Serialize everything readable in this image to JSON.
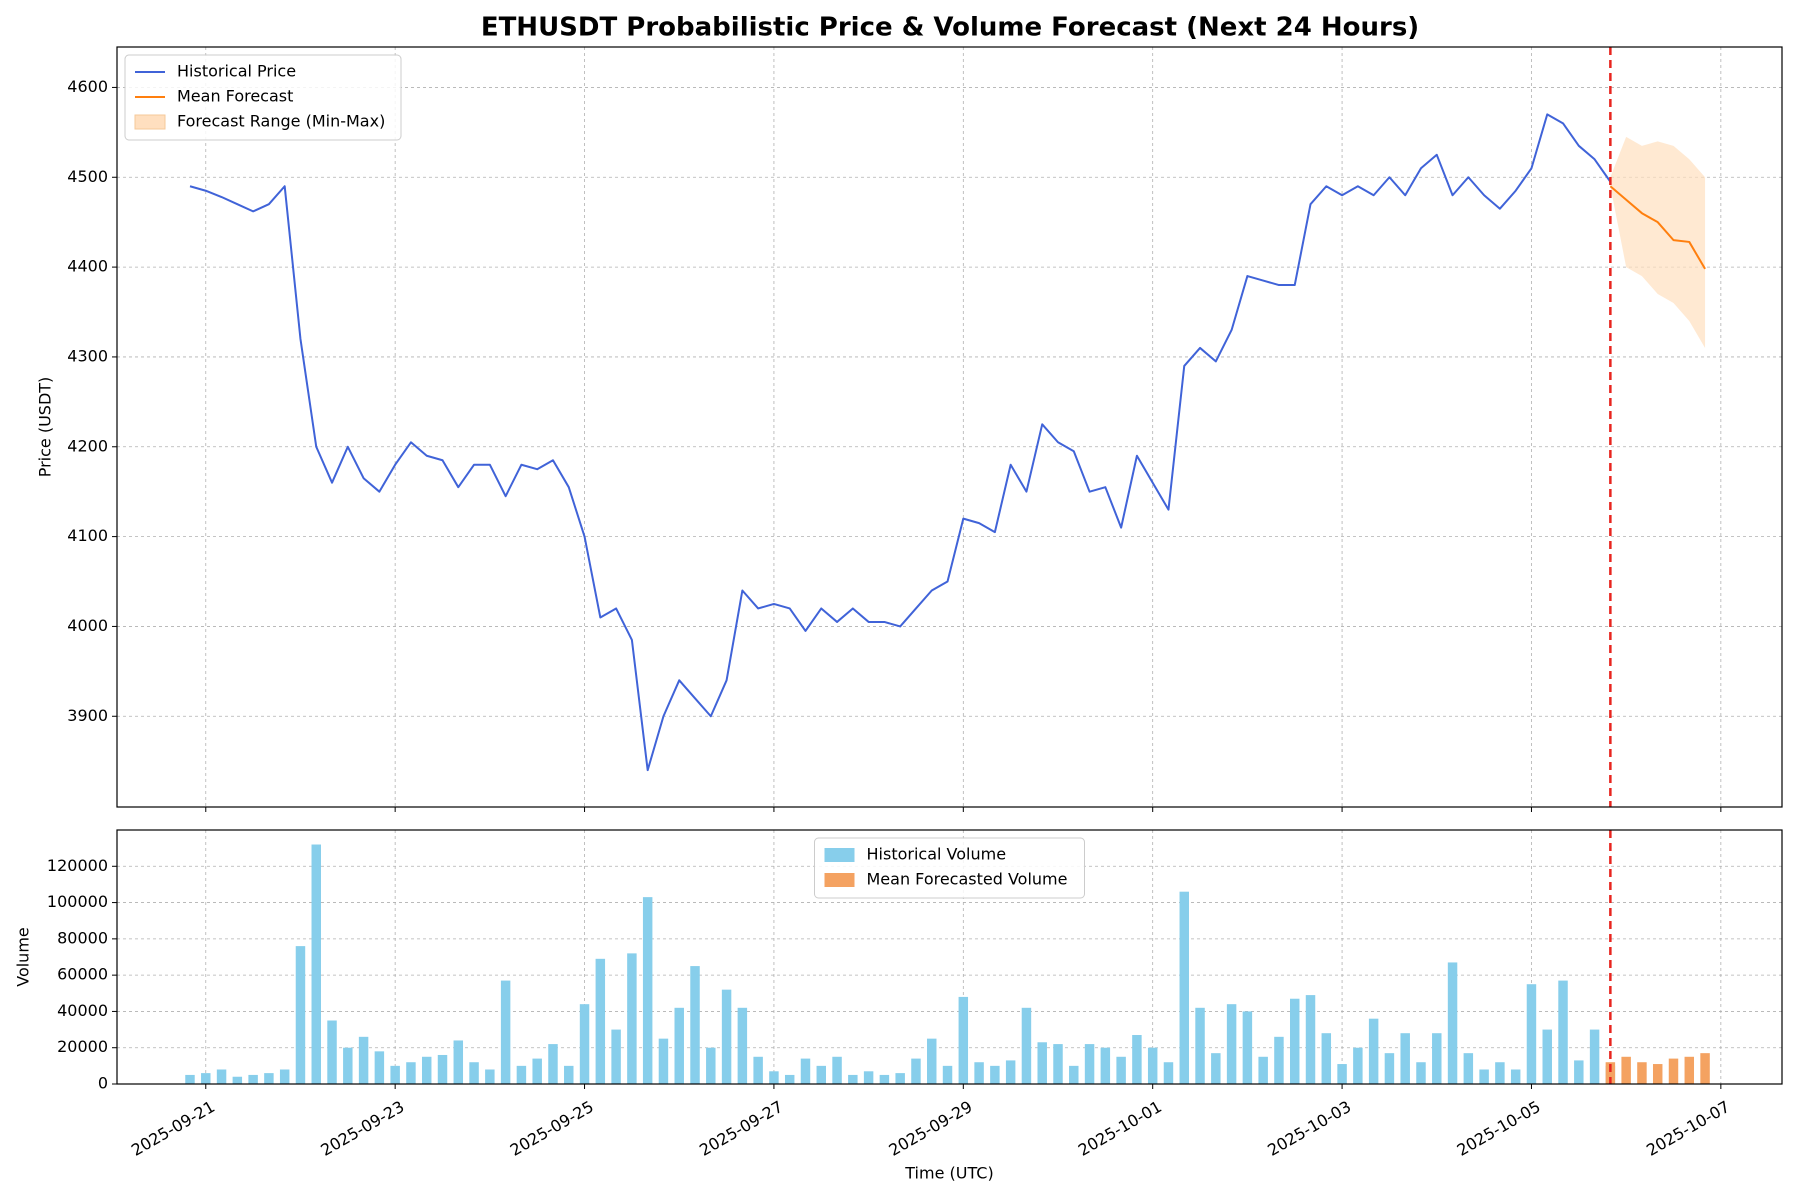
{
  "chart_data": [
    {
      "type": "line",
      "title": "ETHUSDT Probabilistic Price & Volume Forecast (Next 24 Hours)",
      "ylabel": "Price (USDT)",
      "xlim": [
        "2025-09-20 01:30",
        "2025-10-07 15:30"
      ],
      "xticks": [
        "2025-09-21",
        "2025-09-23",
        "2025-09-25",
        "2025-09-27",
        "2025-09-29",
        "2025-10-01",
        "2025-10-03",
        "2025-10-05",
        "2025-10-07"
      ],
      "ylim": [
        3799,
        4645
      ],
      "yticks": [
        3900,
        4000,
        4100,
        4200,
        4300,
        4400,
        4500,
        4600
      ],
      "grid": true,
      "legend": "upper left",
      "forecast_start": "2025-10-05 20:00",
      "forecast_start_color": "#e8251f",
      "series": [
        {
          "name": "Historical Price",
          "color": "#4063d8",
          "x": [
            "2025-09-20 20:00",
            "2025-09-21 00:00",
            "2025-09-21 04:00",
            "2025-09-21 08:00",
            "2025-09-21 12:00",
            "2025-09-21 16:00",
            "2025-09-21 20:00",
            "2025-09-22 00:00",
            "2025-09-22 04:00",
            "2025-09-22 08:00",
            "2025-09-22 12:00",
            "2025-09-22 16:00",
            "2025-09-22 20:00",
            "2025-09-23 00:00",
            "2025-09-23 04:00",
            "2025-09-23 08:00",
            "2025-09-23 12:00",
            "2025-09-23 16:00",
            "2025-09-23 20:00",
            "2025-09-24 00:00",
            "2025-09-24 04:00",
            "2025-09-24 08:00",
            "2025-09-24 12:00",
            "2025-09-24 16:00",
            "2025-09-24 20:00",
            "2025-09-25 00:00",
            "2025-09-25 04:00",
            "2025-09-25 08:00",
            "2025-09-25 12:00",
            "2025-09-25 16:00",
            "2025-09-25 20:00",
            "2025-09-26 00:00",
            "2025-09-26 04:00",
            "2025-09-26 08:00",
            "2025-09-26 12:00",
            "2025-09-26 16:00",
            "2025-09-26 20:00",
            "2025-09-27 00:00",
            "2025-09-27 04:00",
            "2025-09-27 08:00",
            "2025-09-27 12:00",
            "2025-09-27 16:00",
            "2025-09-27 20:00",
            "2025-09-28 00:00",
            "2025-09-28 04:00",
            "2025-09-28 08:00",
            "2025-09-28 12:00",
            "2025-09-28 16:00",
            "2025-09-28 20:00",
            "2025-09-29 00:00",
            "2025-09-29 04:00",
            "2025-09-29 08:00",
            "2025-09-29 12:00",
            "2025-09-29 16:00",
            "2025-09-29 20:00",
            "2025-09-30 00:00",
            "2025-09-30 04:00",
            "2025-09-30 08:00",
            "2025-09-30 12:00",
            "2025-09-30 16:00",
            "2025-09-30 20:00",
            "2025-10-01 00:00",
            "2025-10-01 04:00",
            "2025-10-01 08:00",
            "2025-10-01 12:00",
            "2025-10-01 16:00",
            "2025-10-01 20:00",
            "2025-10-02 00:00",
            "2025-10-02 04:00",
            "2025-10-02 08:00",
            "2025-10-02 12:00",
            "2025-10-02 16:00",
            "2025-10-02 20:00",
            "2025-10-03 00:00",
            "2025-10-03 04:00",
            "2025-10-03 08:00",
            "2025-10-03 12:00",
            "2025-10-03 16:00",
            "2025-10-03 20:00",
            "2025-10-04 00:00",
            "2025-10-04 04:00",
            "2025-10-04 08:00",
            "2025-10-04 12:00",
            "2025-10-04 16:00",
            "2025-10-04 20:00",
            "2025-10-05 00:00",
            "2025-10-05 04:00",
            "2025-10-05 08:00",
            "2025-10-05 12:00",
            "2025-10-05 16:00",
            "2025-10-05 20:00"
          ],
          "values": [
            4490,
            4485,
            4478,
            4470,
            4462,
            4470,
            4490,
            4320,
            4200,
            4160,
            4200,
            4165,
            4150,
            4180,
            4205,
            4190,
            4185,
            4155,
            4180,
            4180,
            4145,
            4180,
            4175,
            4185,
            4155,
            4100,
            4010,
            4020,
            3985,
            3840,
            3900,
            3940,
            3920,
            3900,
            3940,
            4040,
            4020,
            4025,
            4020,
            3995,
            4020,
            4005,
            4020,
            4005,
            4005,
            4000,
            4020,
            4040,
            4050,
            4120,
            4115,
            4105,
            4180,
            4150,
            4225,
            4205,
            4195,
            4150,
            4155,
            4110,
            4190,
            4160,
            4130,
            4290,
            4310,
            4295,
            4330,
            4390,
            4385,
            4380,
            4380,
            4470,
            4490,
            4480,
            4490,
            4480,
            4500,
            4480,
            4510,
            4525,
            4480,
            4500,
            4480,
            4465,
            4485,
            4510,
            4570,
            4560,
            4535,
            4520,
            4495
          ]
        },
        {
          "name": "Mean Forecast",
          "color": "#ff7f0e",
          "x": [
            "2025-10-05 20:00",
            "2025-10-06 00:00",
            "2025-10-06 04:00",
            "2025-10-06 08:00",
            "2025-10-06 12:00",
            "2025-10-06 16:00",
            "2025-10-06 20:00"
          ],
          "values": [
            4490,
            4475,
            4460,
            4450,
            4430,
            4428,
            4398
          ]
        },
        {
          "name": "Forecast Range (Min-Max)",
          "color": "#ffdfbf",
          "type": "range",
          "x": [
            "2025-10-05 20:00",
            "2025-10-06 00:00",
            "2025-10-06 04:00",
            "2025-10-06 08:00",
            "2025-10-06 12:00",
            "2025-10-06 16:00",
            "2025-10-06 20:00"
          ],
          "lower": [
            4490,
            4400,
            4390,
            4370,
            4360,
            4340,
            4310
          ],
          "upper": [
            4500,
            4545,
            4535,
            4540,
            4535,
            4520,
            4500
          ]
        }
      ]
    },
    {
      "type": "bar",
      "ylabel": "Volume",
      "xlabel": "Time (UTC)",
      "xlim": [
        "2025-09-20 01:30",
        "2025-10-07 15:30"
      ],
      "xticks": [
        "2025-09-21",
        "2025-09-23",
        "2025-09-25",
        "2025-09-27",
        "2025-09-29",
        "2025-10-01",
        "2025-10-03",
        "2025-10-05",
        "2025-10-07"
      ],
      "ylim": [
        0,
        140000
      ],
      "yticks": [
        0,
        20000,
        40000,
        60000,
        80000,
        100000,
        120000
      ],
      "grid": true,
      "legend": "upper center",
      "forecast_start": "2025-10-05 20:00",
      "forecast_start_color": "#e8251f",
      "series": [
        {
          "name": "Historical Volume",
          "color": "#87ceeb",
          "x": [
            "2025-09-20 20:00",
            "2025-09-21 00:00",
            "2025-09-21 04:00",
            "2025-09-21 08:00",
            "2025-09-21 12:00",
            "2025-09-21 16:00",
            "2025-09-21 20:00",
            "2025-09-22 00:00",
            "2025-09-22 04:00",
            "2025-09-22 08:00",
            "2025-09-22 12:00",
            "2025-09-22 16:00",
            "2025-09-22 20:00",
            "2025-09-23 00:00",
            "2025-09-23 04:00",
            "2025-09-23 08:00",
            "2025-09-23 12:00",
            "2025-09-23 16:00",
            "2025-09-23 20:00",
            "2025-09-24 00:00",
            "2025-09-24 04:00",
            "2025-09-24 08:00",
            "2025-09-24 12:00",
            "2025-09-24 16:00",
            "2025-09-24 20:00",
            "2025-09-25 00:00",
            "2025-09-25 04:00",
            "2025-09-25 08:00",
            "2025-09-25 12:00",
            "2025-09-25 16:00",
            "2025-09-25 20:00",
            "2025-09-26 00:00",
            "2025-09-26 04:00",
            "2025-09-26 08:00",
            "2025-09-26 12:00",
            "2025-09-26 16:00",
            "2025-09-26 20:00",
            "2025-09-27 00:00",
            "2025-09-27 04:00",
            "2025-09-27 08:00",
            "2025-09-27 12:00",
            "2025-09-27 16:00",
            "2025-09-27 20:00",
            "2025-09-28 00:00",
            "2025-09-28 04:00",
            "2025-09-28 08:00",
            "2025-09-28 12:00",
            "2025-09-28 16:00",
            "2025-09-28 20:00",
            "2025-09-29 00:00",
            "2025-09-29 04:00",
            "2025-09-29 08:00",
            "2025-09-29 12:00",
            "2025-09-29 16:00",
            "2025-09-29 20:00",
            "2025-09-30 00:00",
            "2025-09-30 04:00",
            "2025-09-30 08:00",
            "2025-09-30 12:00",
            "2025-09-30 16:00",
            "2025-09-30 20:00",
            "2025-10-01 00:00",
            "2025-10-01 04:00",
            "2025-10-01 08:00",
            "2025-10-01 12:00",
            "2025-10-01 16:00",
            "2025-10-01 20:00",
            "2025-10-02 00:00",
            "2025-10-02 04:00",
            "2025-10-02 08:00",
            "2025-10-02 12:00",
            "2025-10-02 16:00",
            "2025-10-02 20:00",
            "2025-10-03 00:00",
            "2025-10-03 04:00",
            "2025-10-03 08:00",
            "2025-10-03 12:00",
            "2025-10-03 16:00",
            "2025-10-03 20:00",
            "2025-10-04 00:00",
            "2025-10-04 04:00",
            "2025-10-04 08:00",
            "2025-10-04 12:00",
            "2025-10-04 16:00",
            "2025-10-04 20:00",
            "2025-10-05 00:00",
            "2025-10-05 04:00",
            "2025-10-05 08:00",
            "2025-10-05 12:00",
            "2025-10-05 16:00",
            "2025-10-05 20:00"
          ],
          "values": [
            5000,
            6000,
            8000,
            4000,
            5000,
            6000,
            8000,
            76000,
            132000,
            35000,
            20000,
            26000,
            18000,
            10000,
            12000,
            15000,
            16000,
            24000,
            12000,
            8000,
            57000,
            10000,
            14000,
            22000,
            10000,
            44000,
            69000,
            30000,
            72000,
            103000,
            25000,
            42000,
            65000,
            20000,
            52000,
            42000,
            15000,
            7000,
            5000,
            14000,
            10000,
            15000,
            5000,
            7000,
            5000,
            6000,
            14000,
            25000,
            10000,
            48000,
            12000,
            10000,
            13000,
            42000,
            23000,
            22000,
            10000,
            22000,
            20000,
            15000,
            27000,
            20000,
            12000,
            106000,
            42000,
            17000,
            44000,
            40000,
            15000,
            26000,
            47000,
            49000,
            28000,
            11000,
            20000,
            36000,
            17000,
            28000,
            12000,
            28000,
            67000,
            17000,
            8000,
            12000,
            8000,
            55000,
            30000,
            57000,
            13000,
            30000,
            10000
          ]
        },
        {
          "name": "Mean Forecasted Volume",
          "color": "#f4a261",
          "x": [
            "2025-10-05 20:00",
            "2025-10-06 00:00",
            "2025-10-06 04:00",
            "2025-10-06 08:00",
            "2025-10-06 12:00",
            "2025-10-06 16:00",
            "2025-10-06 20:00"
          ],
          "values": [
            12000,
            15000,
            12000,
            11000,
            14000,
            15000,
            17000
          ]
        }
      ]
    }
  ]
}
